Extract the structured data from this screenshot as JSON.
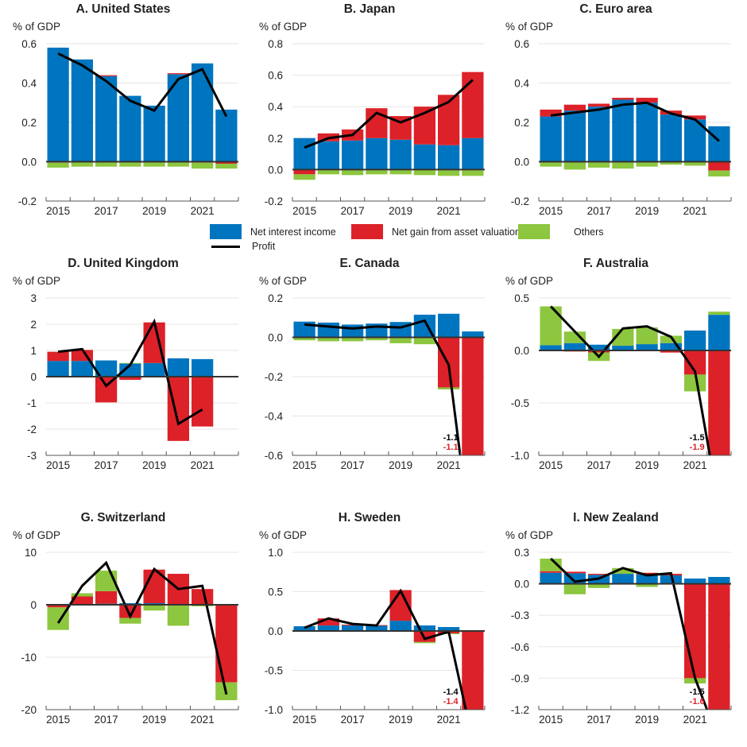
{
  "legend": {
    "items": [
      {
        "key": "nii",
        "label": "Net interest income",
        "color": "#0075BF"
      },
      {
        "key": "val",
        "label": "Net gain from asset valuation",
        "color": "#DC2128"
      },
      {
        "key": "oth",
        "label": "Others",
        "color": "#8DC63F"
      },
      {
        "key": "profit",
        "label": "Profit",
        "color": "#000000"
      }
    ]
  },
  "colors": {
    "nii": "#0075BF",
    "val": "#DC2128",
    "oth": "#8DC63F",
    "profit": "#000000",
    "grid": "#e6e6e6",
    "axis": "#333333"
  },
  "chart_data": [
    {
      "type": "bar",
      "id": "A",
      "title": "A. United States",
      "ylabel": "% of GDP",
      "ylim": [
        -0.2,
        0.6
      ],
      "yticks": [
        -0.2,
        0.0,
        0.2,
        0.4,
        0.6
      ],
      "tick_decimals": 1,
      "categories": [
        "2015",
        "2016",
        "2017",
        "2018",
        "2019",
        "2020",
        "2021",
        "2022"
      ],
      "xtick_labels": [
        "2015",
        "",
        "2017",
        "",
        "2019",
        "",
        "2021",
        ""
      ],
      "series": [
        {
          "name": "Net interest income",
          "values": [
            0.58,
            0.52,
            0.435,
            0.335,
            0.285,
            0.445,
            0.5,
            0.265
          ]
        },
        {
          "name": "Net gain from asset valuation",
          "values": [
            -0.005,
            0.0,
            0.005,
            0.0,
            0.0,
            0.005,
            -0.005,
            -0.01
          ]
        },
        {
          "name": "Others",
          "values": [
            -0.025,
            -0.025,
            -0.025,
            -0.025,
            -0.025,
            -0.025,
            -0.03,
            -0.025
          ]
        },
        {
          "name": "Profit",
          "type": "line",
          "values": [
            0.55,
            0.49,
            0.41,
            0.31,
            0.26,
            0.42,
            0.47,
            0.23
          ]
        }
      ],
      "annotations": []
    },
    {
      "type": "bar",
      "id": "B",
      "title": "B. Japan",
      "ylabel": "% of GDP",
      "ylim": [
        -0.2,
        0.8
      ],
      "yticks": [
        -0.2,
        0.0,
        0.2,
        0.4,
        0.6,
        0.8
      ],
      "tick_decimals": 1,
      "categories": [
        "2015",
        "2016",
        "2017",
        "2018",
        "2019",
        "2020",
        "2021",
        "2022"
      ],
      "xtick_labels": [
        "2015",
        "",
        "2017",
        "",
        "2019",
        "",
        "2021",
        ""
      ],
      "series": [
        {
          "name": "Net interest income",
          "values": [
            0.2,
            0.18,
            0.185,
            0.2,
            0.19,
            0.16,
            0.155,
            0.2
          ]
        },
        {
          "name": "Net gain from asset valuation",
          "values": [
            -0.03,
            0.05,
            0.07,
            0.19,
            0.15,
            0.24,
            0.32,
            0.42
          ]
        },
        {
          "name": "Others",
          "values": [
            -0.035,
            -0.03,
            -0.035,
            -0.03,
            -0.03,
            -0.035,
            -0.04,
            -0.04
          ]
        },
        {
          "name": "Profit",
          "type": "line",
          "values": [
            0.14,
            0.2,
            0.22,
            0.36,
            0.3,
            0.36,
            0.43,
            0.57
          ]
        }
      ],
      "annotations": []
    },
    {
      "type": "bar",
      "id": "C",
      "title": "C. Euro area",
      "ylabel": "% of GDP",
      "ylim": [
        -0.2,
        0.6
      ],
      "yticks": [
        -0.2,
        0.0,
        0.2,
        0.4,
        0.6
      ],
      "tick_decimals": 1,
      "categories": [
        "2015",
        "2016",
        "2017",
        "2018",
        "2019",
        "2020",
        "2021",
        "2022"
      ],
      "xtick_labels": [
        "2015",
        "",
        "2017",
        "",
        "2019",
        "",
        "2021",
        ""
      ],
      "series": [
        {
          "name": "Net interest income",
          "values": [
            0.23,
            0.26,
            0.28,
            0.315,
            0.3,
            0.24,
            0.215,
            0.18
          ]
        },
        {
          "name": "Net gain from asset valuation",
          "values": [
            0.035,
            0.03,
            0.015,
            0.01,
            0.025,
            0.02,
            0.02,
            -0.045
          ]
        },
        {
          "name": "Others",
          "values": [
            -0.025,
            -0.04,
            -0.03,
            -0.035,
            -0.025,
            -0.015,
            -0.02,
            -0.03
          ]
        },
        {
          "name": "Profit",
          "type": "line",
          "values": [
            0.235,
            0.25,
            0.265,
            0.29,
            0.3,
            0.245,
            0.215,
            0.105
          ]
        }
      ],
      "annotations": []
    },
    {
      "type": "bar",
      "id": "D",
      "title": "D. United Kingdom",
      "ylabel": "% of GDP",
      "ylim": [
        -3,
        3
      ],
      "yticks": [
        -3,
        -2,
        -1,
        0,
        1,
        2,
        3
      ],
      "tick_decimals": 0,
      "categories": [
        "2015",
        "2016",
        "2017",
        "2018",
        "2019",
        "2020",
        "2021",
        "2022"
      ],
      "xtick_labels": [
        "2015",
        "",
        "2017",
        "",
        "2019",
        "",
        "2021",
        ""
      ],
      "series": [
        {
          "name": "Net interest income",
          "values": [
            0.6,
            0.6,
            0.62,
            0.5,
            0.52,
            0.7,
            0.67,
            null
          ]
        },
        {
          "name": "Net gain from asset valuation",
          "values": [
            0.35,
            0.42,
            -0.98,
            -0.12,
            1.55,
            -2.45,
            -1.9,
            null
          ]
        },
        {
          "name": "Others",
          "values": [
            0.0,
            0.0,
            0.0,
            0.02,
            0.0,
            0.0,
            0.0,
            null
          ]
        },
        {
          "name": "Profit",
          "type": "line",
          "values": [
            0.95,
            1.05,
            -0.35,
            0.45,
            2.1,
            -1.8,
            -1.25,
            null
          ]
        }
      ],
      "annotations": []
    },
    {
      "type": "bar",
      "id": "E",
      "title": "E. Canada",
      "ylabel": "% of GDP",
      "ylim": [
        -0.6,
        0.2
      ],
      "yticks": [
        -0.6,
        -0.4,
        -0.2,
        0.0,
        0.2
      ],
      "tick_decimals": 1,
      "categories": [
        "2015",
        "2016",
        "2017",
        "2018",
        "2019",
        "2020",
        "2021",
        "2022"
      ],
      "xtick_labels": [
        "2015",
        "",
        "2017",
        "",
        "2019",
        "",
        "2021",
        ""
      ],
      "series": [
        {
          "name": "Net interest income",
          "values": [
            0.08,
            0.075,
            0.065,
            0.07,
            0.078,
            0.115,
            0.12,
            0.03
          ]
        },
        {
          "name": "Net gain from asset valuation",
          "values": [
            0.0,
            0.0,
            0.0,
            0.0,
            0.0,
            0.0,
            -0.255,
            -1.1
          ]
        },
        {
          "name": "Others",
          "values": [
            -0.015,
            -0.02,
            -0.02,
            -0.015,
            -0.03,
            -0.035,
            -0.01,
            0.0
          ]
        },
        {
          "name": "Profit",
          "type": "line",
          "values": [
            0.065,
            0.055,
            0.045,
            0.055,
            0.05,
            0.085,
            -0.14,
            -1.1
          ]
        }
      ],
      "annotations": [
        {
          "text": "-1.1",
          "series": "Profit",
          "color": "#000000"
        },
        {
          "text": "-1.1",
          "series": "Net gain from asset valuation",
          "color": "#DC2128"
        }
      ]
    },
    {
      "type": "bar",
      "id": "F",
      "title": "F. Australia",
      "ylabel": "% of GDP",
      "ylim": [
        -1.0,
        0.5
      ],
      "yticks": [
        -1.0,
        -0.5,
        0.0,
        0.5
      ],
      "tick_decimals": 1,
      "categories": [
        "2015",
        "2016",
        "2017",
        "2018",
        "2019",
        "2020",
        "2021",
        "2022"
      ],
      "xtick_labels": [
        "2015",
        "",
        "2017",
        "",
        "2019",
        "",
        "2021",
        ""
      ],
      "series": [
        {
          "name": "Net interest income",
          "values": [
            0.05,
            0.07,
            0.055,
            0.045,
            0.06,
            0.07,
            0.19,
            0.34
          ]
        },
        {
          "name": "Net gain from asset valuation",
          "values": [
            0.0,
            -0.01,
            -0.02,
            -0.005,
            0.0,
            -0.02,
            -0.23,
            -1.9
          ]
        },
        {
          "name": "Others",
          "values": [
            0.37,
            0.11,
            -0.08,
            0.16,
            0.16,
            0.07,
            -0.16,
            0.03
          ]
        },
        {
          "name": "Profit",
          "type": "line",
          "values": [
            0.42,
            0.18,
            -0.06,
            0.21,
            0.23,
            0.13,
            -0.2,
            -1.5
          ]
        }
      ],
      "annotations": [
        {
          "text": "-1.5",
          "series": "Profit",
          "color": "#000000"
        },
        {
          "text": "-1.9",
          "series": "Net gain from asset valuation",
          "color": "#DC2128"
        }
      ]
    },
    {
      "type": "bar",
      "id": "G",
      "title": "G. Switzerland",
      "ylabel": "% of GDP",
      "ylim": [
        -20,
        10
      ],
      "yticks": [
        -20,
        -10,
        0,
        10
      ],
      "tick_decimals": 0,
      "categories": [
        "2015",
        "2016",
        "2017",
        "2018",
        "2019",
        "2020",
        "2021",
        "2022"
      ],
      "xtick_labels": [
        "2015",
        "",
        "2017",
        "",
        "2019",
        "",
        "2021",
        ""
      ],
      "series": [
        {
          "name": "Net interest income",
          "values": [
            0.0,
            0.0,
            0.2,
            0.3,
            0.3,
            0.0,
            0.0,
            0.0
          ]
        },
        {
          "name": "Net gain from asset valuation",
          "values": [
            -0.5,
            1.6,
            2.4,
            -2.5,
            6.4,
            5.9,
            3.0,
            -14.8
          ]
        },
        {
          "name": "Others",
          "values": [
            -4.3,
            0.6,
            3.9,
            -1.1,
            -1.1,
            -4.0,
            -0.3,
            -3.4
          ]
        },
        {
          "name": "Profit",
          "type": "line",
          "values": [
            -3.5,
            3.6,
            8.0,
            -2.2,
            6.8,
            3.0,
            3.6,
            -17.1
          ]
        }
      ],
      "annotations": []
    },
    {
      "type": "bar",
      "id": "H",
      "title": "H. Sweden",
      "ylabel": "% of GDP",
      "ylim": [
        -1.0,
        1.0
      ],
      "yticks": [
        -1.0,
        -0.5,
        0.0,
        0.5,
        1.0
      ],
      "tick_decimals": 1,
      "categories": [
        "2015",
        "2016",
        "2017",
        "2018",
        "2019",
        "2020",
        "2021",
        "2022"
      ],
      "xtick_labels": [
        "2015",
        "",
        "2017",
        "",
        "2019",
        "",
        "2021",
        ""
      ],
      "series": [
        {
          "name": "Net interest income",
          "values": [
            0.06,
            0.07,
            0.07,
            0.07,
            0.13,
            0.07,
            0.05,
            0.0
          ]
        },
        {
          "name": "Net gain from asset valuation",
          "values": [
            0.0,
            0.09,
            0.01,
            0.005,
            0.39,
            -0.14,
            -0.03,
            -1.4
          ]
        },
        {
          "name": "Others",
          "values": [
            -0.01,
            -0.01,
            0.0,
            0.0,
            0.0,
            -0.015,
            -0.01,
            0.0
          ]
        },
        {
          "name": "Profit",
          "type": "line",
          "values": [
            0.04,
            0.16,
            0.09,
            0.07,
            0.51,
            -0.1,
            -0.01,
            -1.4
          ]
        }
      ],
      "annotations": [
        {
          "text": "-1.4",
          "series": "Profit",
          "color": "#000000"
        },
        {
          "text": "-1.4",
          "series": "Net gain from asset valuation",
          "color": "#DC2128"
        }
      ]
    },
    {
      "type": "bar",
      "id": "I",
      "title": "I. New Zealand",
      "ylabel": "% of GDP",
      "ylim": [
        -1.2,
        0.3
      ],
      "yticks": [
        -1.2,
        -0.9,
        -0.6,
        -0.3,
        0.0,
        0.3
      ],
      "tick_decimals": 1,
      "categories": [
        "2015",
        "2016",
        "2017",
        "2018",
        "2019",
        "2020",
        "2021",
        "2022"
      ],
      "xtick_labels": [
        "2015",
        "",
        "2017",
        "",
        "2019",
        "",
        "2021",
        ""
      ],
      "series": [
        {
          "name": "Net interest income",
          "values": [
            0.105,
            0.1,
            0.085,
            0.095,
            0.09,
            0.08,
            0.05,
            0.065
          ]
        },
        {
          "name": "Net gain from asset valuation",
          "values": [
            0.015,
            0.015,
            0.01,
            0.0,
            0.015,
            0.015,
            -0.9,
            -1.6
          ]
        },
        {
          "name": "Others",
          "values": [
            0.12,
            -0.1,
            -0.04,
            0.055,
            -0.03,
            0.0,
            -0.05,
            0.0
          ]
        },
        {
          "name": "Profit",
          "type": "line",
          "values": [
            0.24,
            0.02,
            0.05,
            0.15,
            0.08,
            0.1,
            -0.9,
            -1.5
          ]
        }
      ],
      "annotations": [
        {
          "text": "-1.5",
          "series": "Profit",
          "color": "#000000"
        },
        {
          "text": "-1.6",
          "series": "Net gain from asset valuation",
          "color": "#DC2128"
        }
      ]
    }
  ]
}
